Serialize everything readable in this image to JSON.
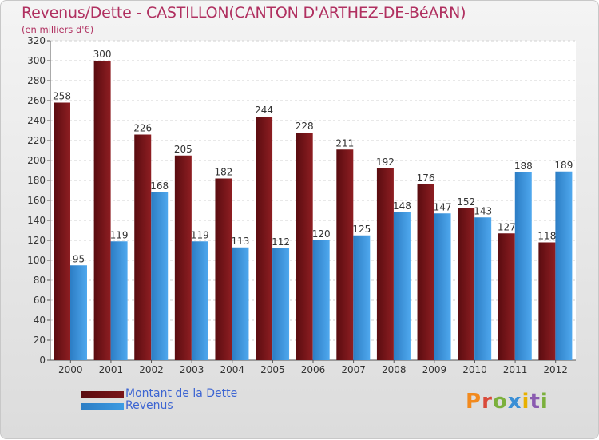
{
  "chart_data": {
    "type": "bar",
    "title": "Revenus/Dette - CASTILLON(CANTON D'ARTHEZ-DE-BéARN)",
    "subtitle": "(en milliers d'€)",
    "categories": [
      "2000",
      "2001",
      "2002",
      "2003",
      "2004",
      "2005",
      "2006",
      "2007",
      "2008",
      "2009",
      "2010",
      "2011",
      "2012"
    ],
    "series": [
      {
        "name": "Montant de la Dette",
        "color": "#7a1418",
        "values": [
          258,
          300,
          226,
          205,
          182,
          244,
          228,
          211,
          192,
          176,
          152,
          127,
          118
        ]
      },
      {
        "name": "Revenus",
        "color": "#3d9be2",
        "values": [
          95,
          119,
          168,
          119,
          113,
          112,
          120,
          125,
          148,
          147,
          143,
          188,
          189
        ]
      }
    ],
    "ylim": [
      0,
      320
    ],
    "yticks": [
      0,
      20,
      40,
      60,
      80,
      100,
      120,
      140,
      160,
      180,
      200,
      220,
      240,
      260,
      280,
      300,
      320
    ],
    "grid": true,
    "legend": "bottom-left",
    "xlabel": "",
    "ylabel": ""
  },
  "logo": {
    "letters": [
      "P",
      "r",
      "o",
      "x",
      "i",
      "t",
      "i"
    ]
  }
}
